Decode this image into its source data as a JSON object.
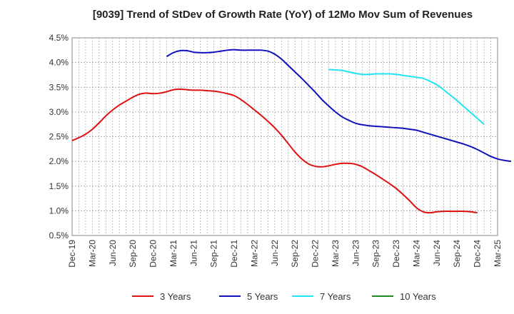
{
  "chart_data": {
    "type": "line",
    "title": "[9039]  Trend of StDev of Growth Rate (YoY) of 12Mo Mov Sum of Revenues",
    "xlabel": "",
    "ylabel": "",
    "ylim": [
      0.5,
      4.5
    ],
    "y_ticks": [
      "0.5%",
      "1.0%",
      "1.5%",
      "2.0%",
      "2.5%",
      "3.0%",
      "3.5%",
      "4.0%",
      "4.5%"
    ],
    "x_tick_labels": [
      "Dec-19",
      "Mar-20",
      "Jun-20",
      "Sep-20",
      "Dec-20",
      "Mar-21",
      "Jun-21",
      "Sep-21",
      "Dec-21",
      "Mar-22",
      "Jun-22",
      "Sep-22",
      "Dec-22",
      "Mar-23",
      "Jun-23",
      "Sep-23",
      "Dec-23",
      "Mar-24",
      "Jun-24",
      "Sep-24",
      "Dec-24",
      "Mar-25"
    ],
    "grid": true,
    "legend_position": "bottom",
    "series": [
      {
        "name": "3 Years",
        "color": "#dd1111",
        "start_month": 0,
        "values": [
          2.42,
          2.48,
          2.55,
          2.65,
          2.78,
          2.92,
          3.04,
          3.14,
          3.22,
          3.3,
          3.36,
          3.38,
          3.37,
          3.38,
          3.41,
          3.45,
          3.46,
          3.45,
          3.44,
          3.44,
          3.43,
          3.42,
          3.4,
          3.37,
          3.33,
          3.25,
          3.15,
          3.04,
          2.93,
          2.81,
          2.68,
          2.53,
          2.36,
          2.19,
          2.05,
          1.95,
          1.9,
          1.89,
          1.91,
          1.94,
          1.96,
          1.96,
          1.94,
          1.89,
          1.81,
          1.73,
          1.64,
          1.55,
          1.45,
          1.33,
          1.2,
          1.06,
          0.98,
          0.96,
          0.98,
          0.99,
          0.99,
          0.99,
          0.99,
          0.98,
          0.96
        ]
      },
      {
        "name": "5 Years",
        "color": "#1111bb",
        "start_month": 14,
        "values": [
          4.12,
          4.2,
          4.24,
          4.24,
          4.21,
          4.2,
          4.2,
          4.21,
          4.23,
          4.25,
          4.26,
          4.25,
          4.25,
          4.25,
          4.25,
          4.23,
          4.17,
          4.07,
          3.94,
          3.81,
          3.68,
          3.54,
          3.4,
          3.25,
          3.12,
          3.0,
          2.9,
          2.83,
          2.77,
          2.74,
          2.72,
          2.71,
          2.7,
          2.69,
          2.68,
          2.67,
          2.65,
          2.63,
          2.59,
          2.55,
          2.51,
          2.47,
          2.43,
          2.39,
          2.35,
          2.3,
          2.24,
          2.17,
          2.1,
          2.05,
          2.02,
          2.0
        ]
      },
      {
        "name": "7 Years",
        "color": "#22e4ee",
        "start_month": 38,
        "values": [
          3.86,
          3.85,
          3.84,
          3.81,
          3.78,
          3.76,
          3.76,
          3.77,
          3.77,
          3.77,
          3.76,
          3.74,
          3.72,
          3.7,
          3.68,
          3.62,
          3.55,
          3.45,
          3.34,
          3.23,
          3.11,
          2.99,
          2.87,
          2.75
        ]
      },
      {
        "name": "10 Years",
        "color": "#228822",
        "start_month": 0,
        "values": []
      }
    ]
  }
}
